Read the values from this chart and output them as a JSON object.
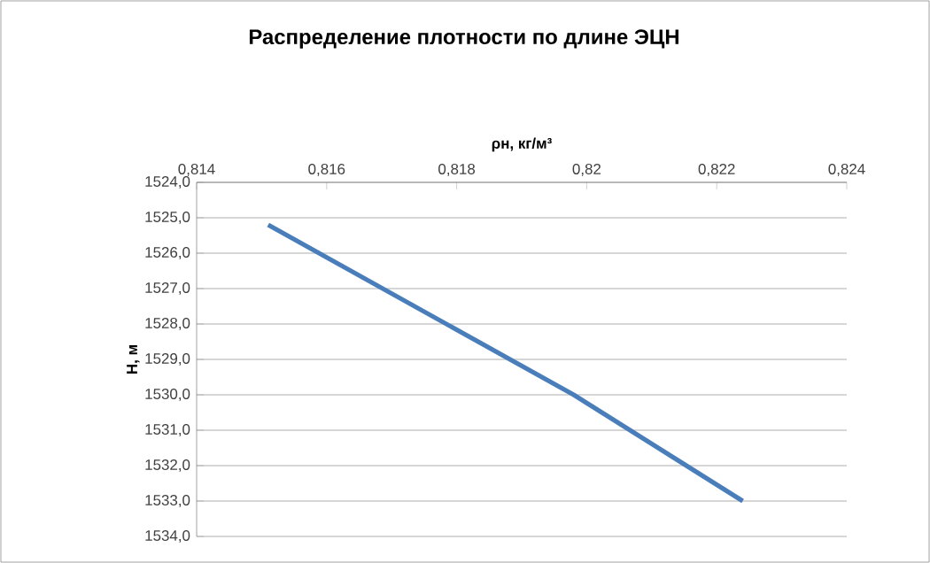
{
  "chart_data": {
    "type": "line",
    "title": "Распределение плотности по длине ЭЦН",
    "xlabel": "ρн, кг/м³",
    "ylabel": "Н, м",
    "series": [
      {
        "color": "#4a7ebb",
        "x": [
          0.8151,
          0.8198,
          0.8224
        ],
        "values": [
          1525.2,
          1530.0,
          1533.0
        ]
      }
    ],
    "xlim": [
      0.814,
      0.824
    ],
    "ylim": [
      1534,
      1524
    ],
    "xticks": [
      {
        "value": 0.814,
        "label": "0,814"
      },
      {
        "value": 0.816,
        "label": "0,816"
      },
      {
        "value": 0.818,
        "label": "0,818"
      },
      {
        "value": 0.82,
        "label": "0,82"
      },
      {
        "value": 0.822,
        "label": "0,822"
      },
      {
        "value": 0.824,
        "label": "0,824"
      }
    ],
    "yticks": [
      {
        "value": 1524,
        "label": "1524,0"
      },
      {
        "value": 1525,
        "label": "1525,0"
      },
      {
        "value": 1526,
        "label": "1526,0"
      },
      {
        "value": 1527,
        "label": "1527,0"
      },
      {
        "value": 1528,
        "label": "1528,0"
      },
      {
        "value": 1529,
        "label": "1529,0"
      },
      {
        "value": 1530,
        "label": "1530,0"
      },
      {
        "value": 1531,
        "label": "1531,0"
      },
      {
        "value": 1532,
        "label": "1532,0"
      },
      {
        "value": 1533,
        "label": "1533,0"
      },
      {
        "value": 1534,
        "label": "1534,0"
      }
    ],
    "grid": "y",
    "marker": "none",
    "line_style": "solid"
  }
}
